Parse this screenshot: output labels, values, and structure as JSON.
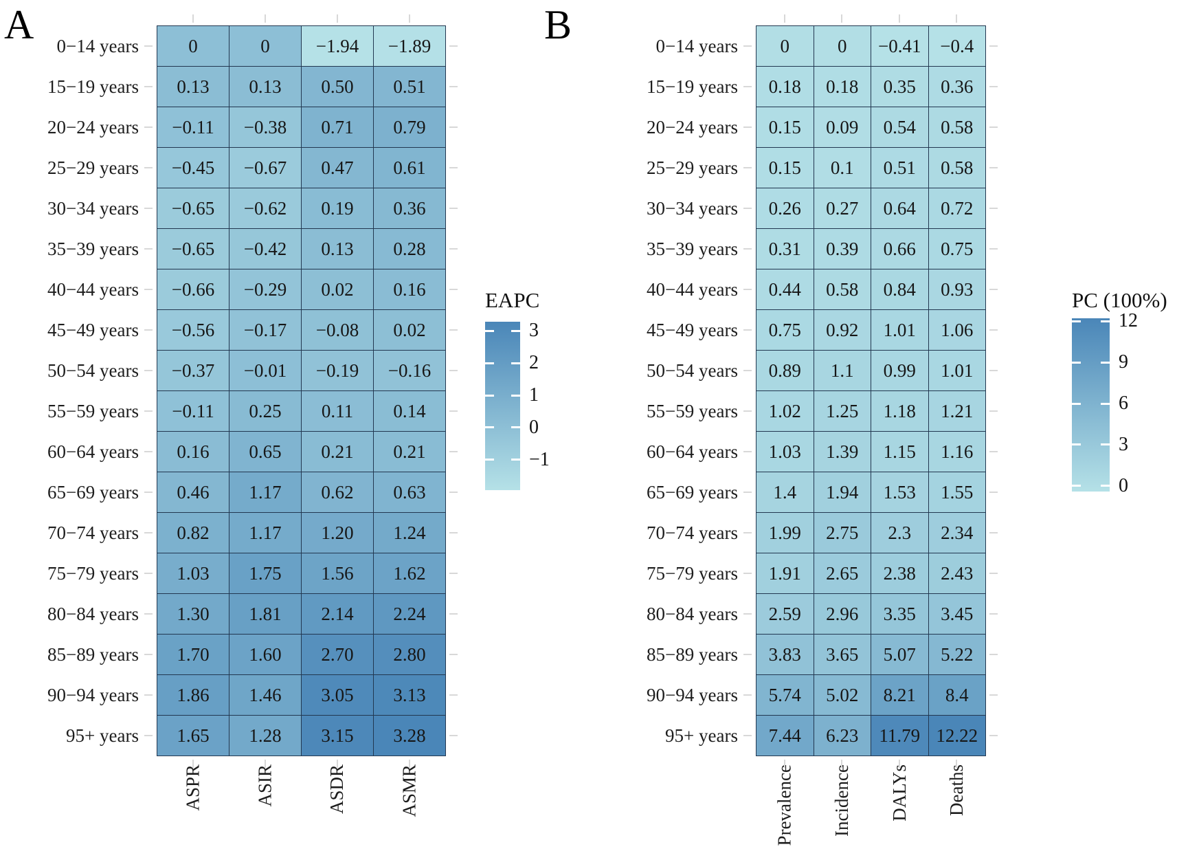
{
  "chart_data": [
    {
      "type": "heatmap",
      "panel_label": "A",
      "rows": [
        "0−14 years",
        "15−19 years",
        "20−24 years",
        "25−29 years",
        "30−34 years",
        "35−39 years",
        "40−44 years",
        "45−49 years",
        "50−54 years",
        "55−59 years",
        "60−64 years",
        "65−69 years",
        "70−74 years",
        "75−79 years",
        "80−84 years",
        "85−89 years",
        "90−94 years",
        "95+ years"
      ],
      "columns": [
        "ASPR",
        "ASIR",
        "ASDR",
        "ASMR"
      ],
      "values": [
        [
          "0",
          "0",
          "−1.94",
          "−1.89"
        ],
        [
          "0.13",
          "0.13",
          "0.50",
          "0.51"
        ],
        [
          "−0.11",
          "−0.38",
          "0.71",
          "0.79"
        ],
        [
          "−0.45",
          "−0.67",
          "0.47",
          "0.61"
        ],
        [
          "−0.65",
          "−0.62",
          "0.19",
          "0.36"
        ],
        [
          "−0.65",
          "−0.42",
          "0.13",
          "0.28"
        ],
        [
          "−0.66",
          "−0.29",
          "0.02",
          "0.16"
        ],
        [
          "−0.56",
          "−0.17",
          "−0.08",
          "0.02"
        ],
        [
          "−0.37",
          "−0.01",
          "−0.19",
          "−0.16"
        ],
        [
          "−0.11",
          "0.25",
          "0.11",
          "0.14"
        ],
        [
          "0.16",
          "0.65",
          "0.21",
          "0.21"
        ],
        [
          "0.46",
          "1.17",
          "0.62",
          "0.63"
        ],
        [
          "0.82",
          "1.17",
          "1.20",
          "1.24"
        ],
        [
          "1.03",
          "1.75",
          "1.56",
          "1.62"
        ],
        [
          "1.30",
          "1.81",
          "2.14",
          "2.24"
        ],
        [
          "1.70",
          "1.60",
          "2.70",
          "2.80"
        ],
        [
          "1.86",
          "1.46",
          "3.05",
          "3.13"
        ],
        [
          "1.65",
          "1.28",
          "3.15",
          "3.28"
        ]
      ],
      "value_range": [
        -1.94,
        3.28
      ],
      "legend": {
        "title": "EAPC",
        "ticks": [
          "3",
          "2",
          "1",
          "0",
          "−1"
        ],
        "tick_values": [
          3,
          2,
          1,
          0,
          -1
        ]
      },
      "colors": {
        "low": "#b5e1e7",
        "high": "#4a86b8"
      }
    },
    {
      "type": "heatmap",
      "panel_label": "B",
      "rows": [
        "0−14 years",
        "15−19 years",
        "20−24 years",
        "25−29 years",
        "30−34 years",
        "35−39 years",
        "40−44 years",
        "45−49 years",
        "50−54 years",
        "55−59 years",
        "60−64 years",
        "65−69 years",
        "70−74 years",
        "75−79 years",
        "80−84 years",
        "85−89 years",
        "90−94 years",
        "95+ years"
      ],
      "columns": [
        "Prevalence",
        "Incidence",
        "DALYs",
        "Deaths"
      ],
      "values": [
        [
          "0",
          "0",
          "−0.41",
          "−0.4"
        ],
        [
          "0.18",
          "0.18",
          "0.35",
          "0.36"
        ],
        [
          "0.15",
          "0.09",
          "0.54",
          "0.58"
        ],
        [
          "0.15",
          "0.1",
          "0.51",
          "0.58"
        ],
        [
          "0.26",
          "0.27",
          "0.64",
          "0.72"
        ],
        [
          "0.31",
          "0.39",
          "0.66",
          "0.75"
        ],
        [
          "0.44",
          "0.58",
          "0.84",
          "0.93"
        ],
        [
          "0.75",
          "0.92",
          "1.01",
          "1.06"
        ],
        [
          "0.89",
          "1.1",
          "0.99",
          "1.01"
        ],
        [
          "1.02",
          "1.25",
          "1.18",
          "1.21"
        ],
        [
          "1.03",
          "1.39",
          "1.15",
          "1.16"
        ],
        [
          "1.4",
          "1.94",
          "1.53",
          "1.55"
        ],
        [
          "1.99",
          "2.75",
          "2.3",
          "2.34"
        ],
        [
          "1.91",
          "2.65",
          "2.38",
          "2.43"
        ],
        [
          "2.59",
          "2.96",
          "3.35",
          "3.45"
        ],
        [
          "3.83",
          "3.65",
          "5.07",
          "5.22"
        ],
        [
          "5.74",
          "5.02",
          "8.21",
          "8.4"
        ],
        [
          "7.44",
          "6.23",
          "11.79",
          "12.22"
        ]
      ],
      "value_range": [
        -0.41,
        12.22
      ],
      "legend": {
        "title": "PC (100%)",
        "ticks": [
          "12",
          "9",
          "6",
          "3",
          "0"
        ],
        "tick_values": [
          12,
          9,
          6,
          3,
          0
        ]
      },
      "colors": {
        "low": "#b5e1e7",
        "high": "#4a86b8"
      }
    }
  ]
}
